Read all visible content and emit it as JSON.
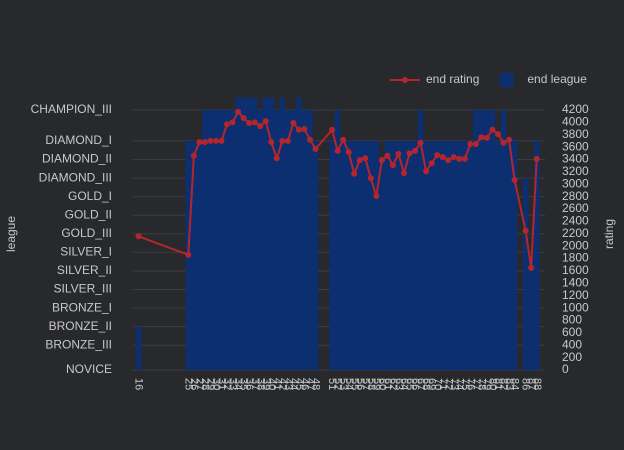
{
  "chart_data": {
    "type": "bar_line",
    "y_label": "league",
    "y2_label": "rating",
    "x": [
      16,
      25,
      26,
      27,
      28,
      29,
      30,
      31,
      32,
      33,
      34,
      35,
      36,
      37,
      38,
      39,
      40,
      41,
      42,
      43,
      44,
      45,
      46,
      47,
      48,
      51,
      52,
      53,
      54,
      55,
      56,
      57,
      58,
      59,
      60,
      61,
      62,
      63,
      64,
      65,
      66,
      67,
      68,
      69,
      70,
      71,
      72,
      73,
      74,
      75,
      76,
      77,
      78,
      79,
      80,
      81,
      82,
      83,
      84,
      86,
      87,
      88
    ],
    "xlim": [
      15,
      89.5
    ],
    "series": [
      {
        "name": "end rating",
        "type": "line",
        "axis": "y2",
        "color": "#b5262c",
        "values": [
          2160,
          1860,
          3460,
          3680,
          3680,
          3700,
          3700,
          3700,
          3970,
          4000,
          4170,
          4070,
          3990,
          4000,
          3940,
          4020,
          3680,
          3420,
          3700,
          3700,
          3990,
          3880,
          3890,
          3720,
          3570,
          3880,
          3540,
          3720,
          3520,
          3170,
          3390,
          3420,
          3100,
          2810,
          3390,
          3460,
          3310,
          3490,
          3180,
          3500,
          3540,
          3670,
          3210,
          3340,
          3470,
          3440,
          3390,
          3440,
          3410,
          3410,
          3650,
          3650,
          3760,
          3750,
          3880,
          3810,
          3670,
          3720,
          3070,
          2250,
          1650,
          3410
        ]
      },
      {
        "name": "end league",
        "type": "bar",
        "axis": "y",
        "color": "#0c2f72",
        "values": [
          700,
          3700,
          3700,
          3700,
          4200,
          4200,
          4200,
          4200,
          4200,
          4200,
          4500,
          4500,
          4500,
          4500,
          4200,
          4500,
          4500,
          4200,
          4500,
          4200,
          4200,
          4500,
          4200,
          4200,
          3700,
          3700,
          4200,
          3700,
          3700,
          3700,
          3700,
          3700,
          3700,
          3700,
          3400,
          3700,
          3700,
          3700,
          3700,
          3700,
          3700,
          4200,
          3700,
          3700,
          3700,
          3700,
          3700,
          3700,
          3700,
          3700,
          3700,
          4200,
          4200,
          4200,
          4200,
          3700,
          4200,
          3700,
          3700,
          3100,
          1900,
          3700
        ]
      }
    ],
    "ylim": [
      0,
      4400
    ],
    "yticks": [
      {
        "value": 0,
        "label": "NOVICE"
      },
      {
        "value": 400,
        "label": "BRONZE_III"
      },
      {
        "value": 700,
        "label": "BRONZE_II"
      },
      {
        "value": 1000,
        "label": "BRONZE_I"
      },
      {
        "value": 1300,
        "label": "SILVER_III"
      },
      {
        "value": 1600,
        "label": "SILVER_II"
      },
      {
        "value": 1900,
        "label": "SILVER_I"
      },
      {
        "value": 2200,
        "label": "GOLD_III"
      },
      {
        "value": 2500,
        "label": "GOLD_II"
      },
      {
        "value": 2800,
        "label": "GOLD_I"
      },
      {
        "value": 3100,
        "label": "DIAMOND_III"
      },
      {
        "value": 3400,
        "label": "DIAMOND_II"
      },
      {
        "value": 3700,
        "label": "DIAMOND_I"
      },
      {
        "value": 4200,
        "label": "CHAMPION_III"
      }
    ],
    "y2lim": [
      0,
      4400
    ],
    "y2ticks": [
      0,
      200,
      400,
      600,
      800,
      1000,
      1200,
      1400,
      1600,
      1800,
      2000,
      2200,
      2400,
      2600,
      2800,
      3000,
      3200,
      3400,
      3600,
      3800,
      4000,
      4200
    ],
    "grid": true,
    "legend": "top-right"
  }
}
